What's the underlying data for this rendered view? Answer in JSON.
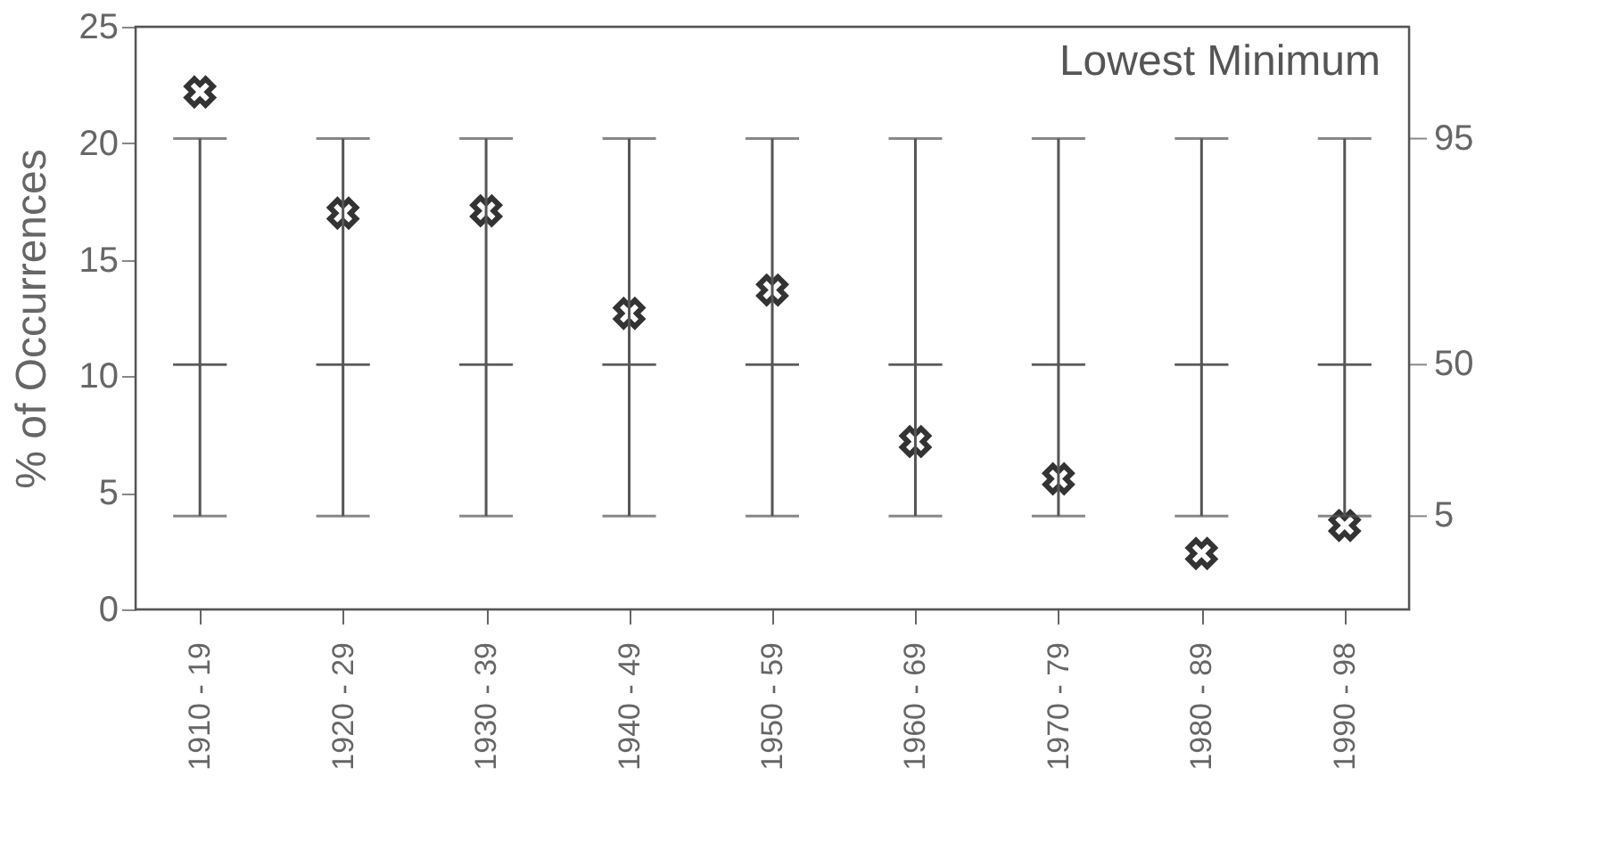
{
  "chart_data": {
    "type": "scatter",
    "ylabel": "% of Occurrences",
    "annotations": [
      "Lowest Minimum",
      "95",
      "50",
      "5"
    ],
    "categories": [
      "1910 - 19",
      "1920 - 29",
      "1930 - 39",
      "1940 - 49",
      "1950 - 59",
      "1960 - 69",
      "1970 - 79",
      "1980 - 89",
      "1990 - 98"
    ],
    "ylim": [
      0,
      25
    ],
    "yticks": [
      0,
      5,
      10,
      15,
      20,
      25
    ],
    "grid": false,
    "series": [
      {
        "marker": "cross",
        "color": "#333333",
        "values": [
          22.2,
          17.0,
          17.1,
          12.7,
          13.7,
          7.2,
          5.6,
          2.4,
          3.6
        ]
      },
      {
        "type": "box",
        "color": "#555555",
        "boxes": [
          {
            "low": 4,
            "q1": 10.5,
            "median": 10.5,
            "q3": 10.5,
            "high": 20.2
          },
          {
            "low": 4,
            "q1": 10.5,
            "median": 10.5,
            "q3": 10.5,
            "high": 20.2
          },
          {
            "low": 4,
            "q1": 10.5,
            "median": 10.5,
            "q3": 10.5,
            "high": 20.2
          },
          {
            "low": 4,
            "q1": 10.5,
            "median": 10.5,
            "q3": 10.5,
            "high": 20.2
          },
          {
            "low": 4,
            "q1": 10.5,
            "median": 10.5,
            "q3": 10.5,
            "high": 20.2
          },
          {
            "low": 4,
            "q1": 10.5,
            "median": 10.5,
            "q3": 10.5,
            "high": 20.2
          },
          {
            "low": 4,
            "q1": 10.5,
            "median": 10.5,
            "q3": 10.5,
            "high": 20.2
          },
          {
            "low": 4,
            "q1": 10.5,
            "median": 10.5,
            "q3": 10.5,
            "high": 20.2
          },
          {
            "low": 4,
            "q1": 10.5,
            "median": 10.5,
            "q3": 10.5,
            "high": 20.2
          }
        ]
      }
    ]
  }
}
